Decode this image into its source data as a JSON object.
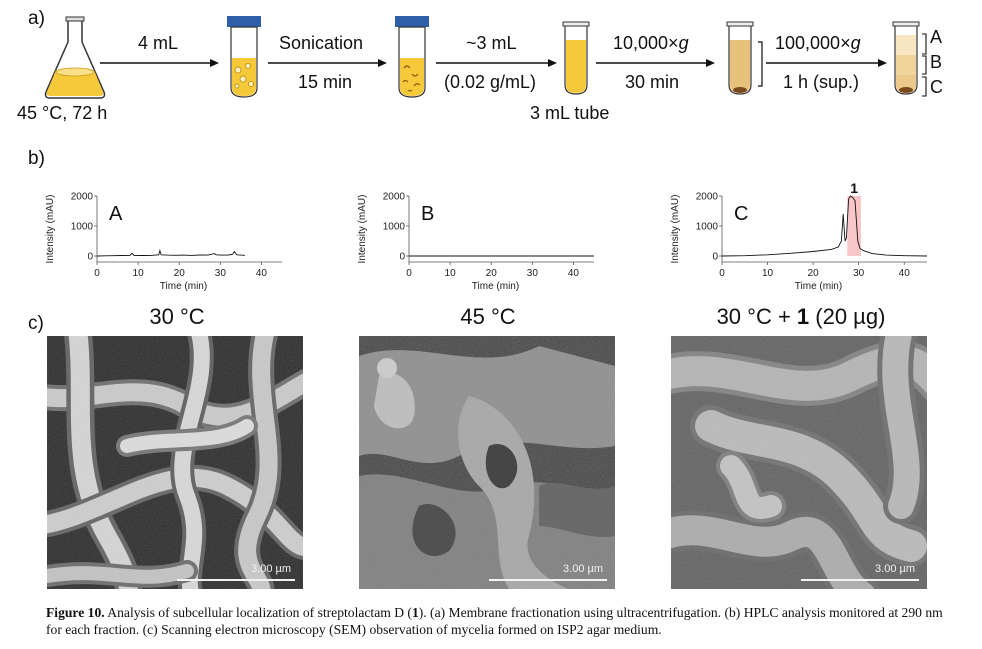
{
  "panel_a": {
    "label": "a)",
    "flask_caption": "45 °C, 72 h",
    "step1_top": "4 mL",
    "step2_top": "Sonication",
    "step2_bottom": "15 min",
    "step3_top": "~3 mL",
    "step3_bottom": "(0.02 g/mL)",
    "tube_caption": "3 mL tube",
    "step4_top_num": "10,000×",
    "step4_top_g": "g",
    "step4_bottom": "30 min",
    "step5_top_num": "100,000×",
    "step5_top_g": "g",
    "step5_bottom": "1 h (sup.)",
    "fractions": [
      "A",
      "B",
      "C"
    ]
  },
  "panel_b": {
    "label": "b)"
  },
  "chart_data": [
    {
      "type": "line",
      "panel": "A",
      "xlabel": "Time (min)",
      "ylabel": "Intensity (mAU)",
      "xlim": [
        0,
        45
      ],
      "ylim": [
        0,
        2000
      ],
      "xticks": [
        "0",
        "10",
        "20",
        "30",
        "40"
      ],
      "yticks": [
        "0",
        "1000",
        "2000"
      ],
      "x": [
        0,
        2,
        4,
        6,
        8,
        8.5,
        9,
        11,
        13,
        15,
        15.3,
        15.6,
        17,
        19,
        21,
        23,
        25,
        27,
        28.5,
        29,
        30,
        32,
        33,
        33.4,
        34,
        36
      ],
      "y": [
        0,
        5,
        10,
        15,
        20,
        90,
        20,
        15,
        20,
        40,
        180,
        40,
        30,
        25,
        30,
        20,
        35,
        30,
        80,
        40,
        30,
        35,
        60,
        150,
        40,
        25
      ]
    },
    {
      "type": "line",
      "panel": "B",
      "xlabel": "Time (min)",
      "ylabel": "Intensity (mAU)",
      "xlim": [
        0,
        45
      ],
      "ylim": [
        0,
        2000
      ],
      "xticks": [
        "0",
        "10",
        "20",
        "30",
        "40"
      ],
      "yticks": [
        "0",
        "1000",
        "2000"
      ],
      "x": [
        0,
        5,
        10,
        15,
        20,
        25,
        30,
        35,
        40,
        45
      ],
      "y": [
        0,
        0,
        0,
        0,
        0,
        0,
        0,
        0,
        0,
        0
      ]
    },
    {
      "type": "line",
      "panel": "C",
      "xlabel": "Time (min)",
      "ylabel": "Intensity (mAU)",
      "xlim": [
        0,
        45
      ],
      "ylim": [
        0,
        2000
      ],
      "xticks": [
        "0",
        "10",
        "20",
        "30",
        "40"
      ],
      "yticks": [
        "0",
        "1000",
        "2000"
      ],
      "peak_label": "1",
      "highlight_x": [
        27.5,
        30.5
      ],
      "x": [
        0,
        5,
        10,
        15,
        20,
        24,
        25.5,
        26.2,
        26.6,
        27.0,
        27.3,
        27.8,
        28.2,
        28.7,
        29.2,
        29.8,
        30.3,
        31,
        33,
        36,
        40,
        45
      ],
      "y": [
        0,
        10,
        40,
        90,
        150,
        220,
        300,
        500,
        1400,
        500,
        600,
        1900,
        2000,
        1950,
        1850,
        500,
        250,
        180,
        80,
        30,
        10,
        0
      ]
    }
  ],
  "panel_c": {
    "label": "c)",
    "titles": [
      {
        "text": "30 °C",
        "bold_part": "",
        "suffix": ""
      },
      {
        "text": "45 °C",
        "bold_part": "",
        "suffix": ""
      },
      {
        "text": "30 °C + ",
        "bold_part": "1",
        "suffix": " (20 µg)"
      }
    ],
    "scale_label": "3.00 µm"
  },
  "caption": {
    "fig_label": "Figure 10.",
    "text_1": " Analysis of subcellular localization of streptolactam D (",
    "compound": "1",
    "text_2": "). (a) Membrane fractionation using ultracentrifugation. (b) HPLC analysis monitored at 290 nm for each fraction. (c) Scanning electron microscopy (SEM) observation of mycelia formed on ISP2 agar medium."
  },
  "colors": {
    "medium_yellow": "#f5c93a",
    "cap_blue": "#2f5fa8",
    "pellet_brown": "#7a4a1c",
    "highlight_pink": "#f6b8b8"
  }
}
